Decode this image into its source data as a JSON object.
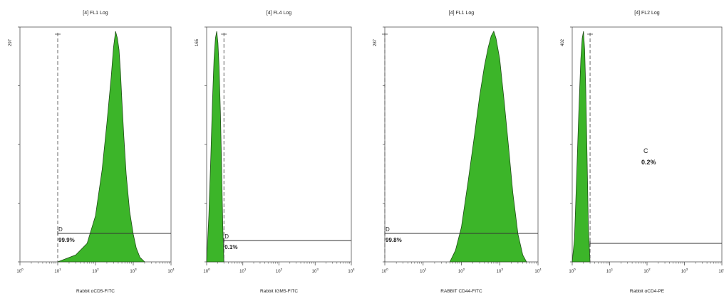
{
  "chart_data": [
    {
      "type": "area",
      "title": "[4] FL1 Log",
      "xlabel": "Rabbit αCD5-FITC",
      "ylabel": "",
      "xscale": "log",
      "xlim": [
        1,
        10000
      ],
      "y_top_label": "297",
      "gate_line_x": 10,
      "x": [
        10,
        30,
        60,
        100,
        150,
        200,
        260,
        300,
        340,
        380,
        420,
        460,
        500,
        560,
        650,
        800,
        1000,
        1200,
        1500,
        2000
      ],
      "values": [
        0,
        3,
        8,
        20,
        40,
        60,
        80,
        93,
        100,
        97,
        92,
        82,
        70,
        55,
        38,
        22,
        12,
        6,
        2,
        0
      ],
      "regions": [
        {
          "letter": "D",
          "percent": "99.9%",
          "x_start": 10,
          "x_end": 10000
        }
      ],
      "color": "#3cb529"
    },
    {
      "type": "area",
      "title": "[4] FL4 Log",
      "xlabel": "Rabbit IGM5-FITC",
      "ylabel": "",
      "xscale": "log",
      "xlim": [
        1,
        10000
      ],
      "y_top_label": "165",
      "gate_line_x": 3,
      "x": [
        1,
        1.15,
        1.3,
        1.45,
        1.6,
        1.75,
        1.9,
        2.05,
        2.2,
        2.4,
        2.6,
        2.8,
        3
      ],
      "values": [
        0,
        20,
        45,
        70,
        88,
        97,
        100,
        95,
        85,
        65,
        40,
        15,
        0
      ],
      "regions": [
        {
          "letter": "D",
          "percent": "0.1%",
          "x_start": 3,
          "x_end": 10000
        }
      ],
      "color": "#3cb529"
    },
    {
      "type": "area",
      "title": "[4] FL1 Log",
      "xlabel": "RABBIT CD44-FITC",
      "ylabel": "",
      "xscale": "log",
      "xlim": [
        1,
        10000
      ],
      "y_top_label": "287",
      "gate_line_x": 1,
      "x": [
        50,
        70,
        100,
        150,
        220,
        300,
        400,
        500,
        600,
        700,
        800,
        1000,
        1300,
        1700,
        2200,
        3000,
        4000,
        5000
      ],
      "values": [
        0,
        5,
        15,
        35,
        55,
        72,
        85,
        93,
        98,
        100,
        97,
        88,
        70,
        50,
        30,
        12,
        3,
        0
      ],
      "regions": [
        {
          "letter": "D",
          "percent": "99.8%",
          "x_start": 1,
          "x_end": 10000
        }
      ],
      "color": "#3cb529"
    },
    {
      "type": "area",
      "title": "[4] FL2 Log",
      "xlabel": "Rabbit αCD4-PE",
      "ylabel": "",
      "xscale": "log",
      "xlim": [
        1,
        10000
      ],
      "y_top_label": "402",
      "gate_line_x": 3,
      "x": [
        1,
        1.15,
        1.3,
        1.5,
        1.7,
        1.85,
        2,
        2.15,
        2.3,
        2.5,
        2.7,
        3
      ],
      "values": [
        0,
        10,
        35,
        65,
        88,
        97,
        100,
        92,
        75,
        45,
        15,
        0
      ],
      "regions": [
        {
          "letter": "C",
          "percent": "0.2%",
          "x_start": 3,
          "x_end": 10000
        }
      ],
      "color": "#3cb529"
    }
  ]
}
